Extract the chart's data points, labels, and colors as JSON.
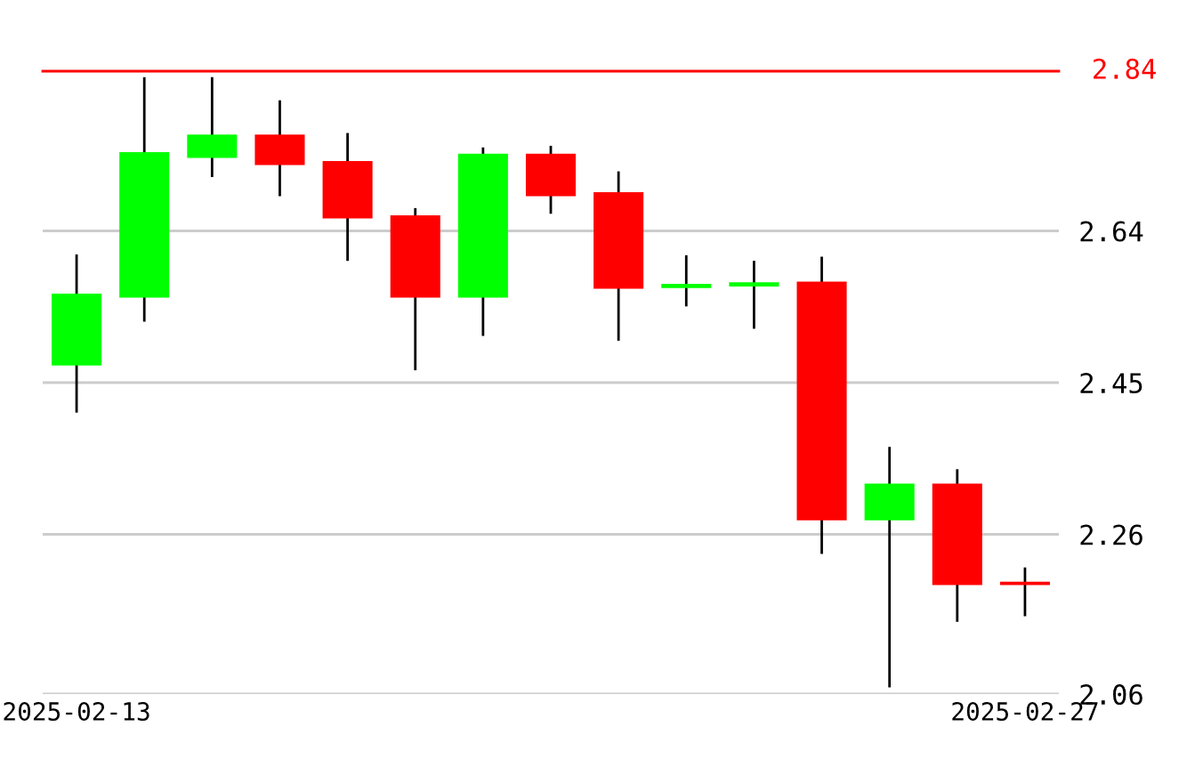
{
  "chart_data": {
    "type": "candlestick",
    "categories": [
      "2025-02-13",
      null,
      null,
      null,
      null,
      null,
      null,
      null,
      null,
      null,
      null,
      null,
      null,
      null,
      "2025-02-27"
    ],
    "ohlc": [
      [
        2.473,
        2.609,
        2.414,
        2.56
      ],
      [
        2.558,
        2.831,
        2.528,
        2.737
      ],
      [
        2.733,
        2.831,
        2.709,
        2.759
      ],
      [
        2.759,
        2.802,
        2.685,
        2.724
      ],
      [
        2.726,
        2.761,
        2.604,
        2.657
      ],
      [
        2.658,
        2.667,
        2.467,
        2.558
      ],
      [
        2.558,
        2.743,
        2.51,
        2.735
      ],
      [
        2.735,
        2.745,
        2.663,
        2.685
      ],
      [
        2.687,
        2.713,
        2.504,
        2.569
      ],
      [
        2.57,
        2.608,
        2.547,
        2.572
      ],
      [
        2.572,
        2.601,
        2.519,
        2.574
      ],
      [
        2.575,
        2.606,
        2.237,
        2.279
      ],
      [
        2.279,
        2.368,
        2.07,
        2.322
      ],
      [
        2.322,
        2.34,
        2.152,
        2.198
      ],
      [
        2.199,
        2.217,
        2.159,
        2.198
      ]
    ],
    "colors": [
      "#00ff00",
      "#00ff00",
      "#00ff00",
      "#ff0000",
      "#ff0000",
      "#ff0000",
      "#00ff00",
      "#ff0000",
      "#ff0000",
      "#00ff00",
      "#00ff00",
      "#ff0000",
      "#00ff00",
      "#ff0000",
      "#ff0000"
    ],
    "ylim": [
      2.06,
      2.84
    ],
    "yticks": [
      2.06,
      2.26,
      2.45,
      2.64
    ],
    "grid": "y",
    "ref_lines": [
      {
        "axis": "y",
        "value": 2.84,
        "label": "2.84",
        "color": "#ff0000"
      }
    ]
  }
}
